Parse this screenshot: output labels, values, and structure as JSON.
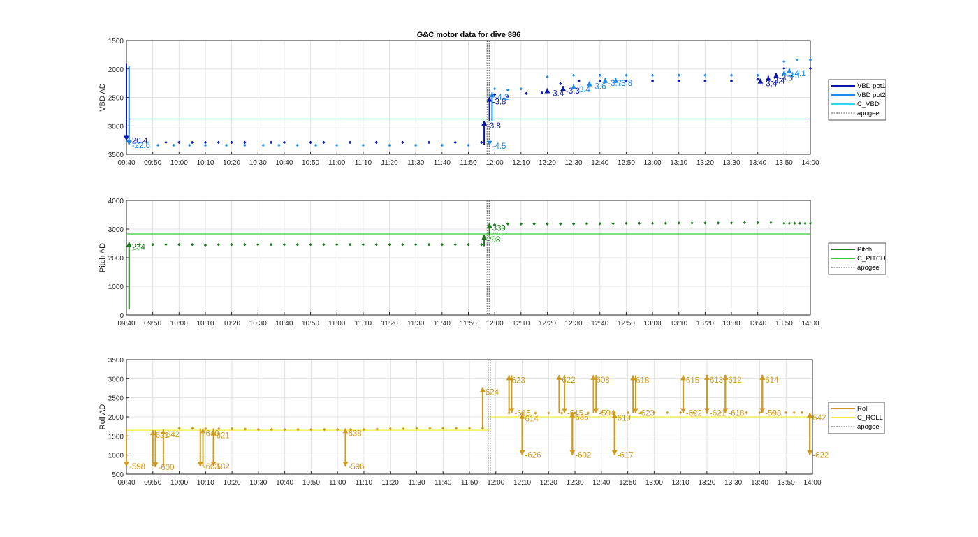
{
  "title": "G&C motor data for dive 886",
  "x_ticks": [
    "09:40",
    "09:50",
    "10:00",
    "10:10",
    "10:20",
    "10:30",
    "10:40",
    "10:50",
    "11:00",
    "11:10",
    "11:20",
    "11:30",
    "11:40",
    "11:50",
    "12:00",
    "12:10",
    "12:20",
    "12:30",
    "12:40",
    "12:50",
    "13:00",
    "13:10",
    "13:20",
    "13:30",
    "13:40",
    "13:50",
    "14:00"
  ],
  "colors": {
    "vbd_pot1": "#0a17a8",
    "vbd_pot2": "#1e88e8",
    "c_vbd": "#2fd6e6",
    "pitch": "#1a7a1a",
    "c_pitch": "#33cc33",
    "roll": "#cc9a1f",
    "c_roll": "#f2ea3a",
    "apogee": "#555555"
  },
  "chart_data": [
    {
      "type": "scatter",
      "ylabel": "VBD AD",
      "ylim": [
        3500,
        1500
      ],
      "y_reversed": true,
      "y_ticks": [
        1500,
        2000,
        2500,
        3000,
        3500
      ],
      "grid": true,
      "legend_position": "right",
      "legend": [
        "VBD pot1",
        "VBD pot2",
        "C_VBD",
        "apogee"
      ],
      "x_range_minutes": [
        0,
        260
      ],
      "apogee_minute": 137.5,
      "reference_line": {
        "name": "C_VBD",
        "y": 2880
      },
      "series": [
        {
          "name": "VBD pot1",
          "x": [
            15,
            20,
            25,
            30,
            35,
            40,
            45,
            55,
            60,
            70,
            75,
            85,
            95,
            105,
            115,
            125,
            135,
            140,
            145,
            152,
            158,
            165,
            172,
            180,
            190,
            200,
            210,
            220,
            230,
            240,
            250,
            260
          ],
          "y": [
            3290,
            3290,
            3290,
            3290,
            3290,
            3290,
            3290,
            3290,
            3290,
            3290,
            3290,
            3290,
            3290,
            3290,
            3290,
            3290,
            3290,
            2450,
            2480,
            2430,
            2420,
            2260,
            2210,
            2210,
            2210,
            2210,
            2210,
            2210,
            2210,
            2180,
            1990,
            1990
          ]
        },
        {
          "name": "VBD pot2",
          "x": [
            12,
            18,
            24,
            30,
            38,
            45,
            52,
            58,
            65,
            72,
            80,
            90,
            100,
            110,
            120,
            130,
            140,
            145,
            150,
            160,
            170,
            180,
            190,
            200,
            210,
            220,
            230,
            240,
            250,
            255,
            260
          ],
          "y": [
            3340,
            3340,
            3340,
            3340,
            3340,
            3340,
            3340,
            3340,
            3340,
            3340,
            3340,
            3340,
            3340,
            3340,
            3340,
            3340,
            2350,
            2370,
            2350,
            2140,
            2110,
            2110,
            2110,
            2110,
            2110,
            2110,
            2110,
            2110,
            1870,
            1840,
            1840
          ]
        }
      ],
      "annotations": [
        {
          "x": 0,
          "y": 3260,
          "label": "-20.4",
          "color": "vbd_pot1",
          "from_y": 1900
        },
        {
          "x": 1,
          "y": 3340,
          "label": "-22.6",
          "color": "vbd_pot2",
          "from_y": 1950
        },
        {
          "x": 136,
          "y": 2910,
          "label": "-3.8",
          "color": "vbd_pot1",
          "from_y": 3340
        },
        {
          "x": 138,
          "y": 2490,
          "label": "-3.8",
          "color": "vbd_pot1",
          "from_y": 2910
        },
        {
          "x": 138,
          "y": 3350,
          "label": "-4.5",
          "color": "vbd_pot2",
          "from_y": 3350
        },
        {
          "x": 139,
          "y": 2410,
          "label": "-4.2",
          "color": "vbd_pot2",
          "from_y": 2910
        },
        {
          "x": 160,
          "y": 2340,
          "label": "-3.4",
          "color": "vbd_pot1",
          "from_y": 2350
        },
        {
          "x": 166,
          "y": 2300,
          "label": "-3.3",
          "color": "vbd_pot1",
          "from_y": 2330
        },
        {
          "x": 170,
          "y": 2270,
          "label": "-3.4",
          "color": "vbd_pot2",
          "from_y": 2300
        },
        {
          "x": 176,
          "y": 2220,
          "label": "-3.6",
          "color": "vbd_pot2",
          "from_y": 2300
        },
        {
          "x": 182,
          "y": 2160,
          "label": "-3.7",
          "color": "vbd_pot2",
          "from_y": 2250
        },
        {
          "x": 186,
          "y": 2160,
          "label": "-3.8",
          "color": "vbd_pot2",
          "from_y": 2250
        },
        {
          "x": 241,
          "y": 2170,
          "label": "-3.4",
          "color": "vbd_pot1",
          "from_y": 2220
        },
        {
          "x": 244,
          "y": 2120,
          "label": "-3.4",
          "color": "vbd_pot1",
          "from_y": 2160
        },
        {
          "x": 247,
          "y": 2070,
          "label": "-3.3",
          "color": "vbd_pot1",
          "from_y": 2120
        },
        {
          "x": 250,
          "y": 2030,
          "label": "-4.1",
          "color": "vbd_pot2",
          "from_y": 2090
        },
        {
          "x": 252,
          "y": 1990,
          "label": "-4.1",
          "color": "vbd_pot2",
          "from_y": 2030
        }
      ]
    },
    {
      "type": "scatter",
      "ylabel": "Pitch AD",
      "ylim": [
        0,
        4000
      ],
      "y_ticks": [
        0,
        1000,
        2000,
        3000,
        4000
      ],
      "grid": true,
      "legend_position": "right",
      "legend": [
        "Pitch",
        "C_PITCH",
        "apogee"
      ],
      "x_range_minutes": [
        0,
        260
      ],
      "apogee_minute": 137.5,
      "reference_line": {
        "name": "C_PITCH",
        "y": 2830
      },
      "series": [
        {
          "name": "Pitch",
          "x": [
            5,
            10,
            15,
            20,
            25,
            30,
            35,
            40,
            45,
            50,
            55,
            60,
            65,
            70,
            75,
            80,
            85,
            90,
            95,
            100,
            105,
            110,
            115,
            120,
            125,
            130,
            135,
            140,
            145,
            150,
            155,
            160,
            165,
            170,
            175,
            180,
            185,
            190,
            195,
            200,
            205,
            210,
            215,
            220,
            225,
            230,
            235,
            240,
            245,
            250,
            252,
            254,
            256,
            258,
            260
          ],
          "y": [
            2460,
            2460,
            2460,
            2460,
            2460,
            2440,
            2460,
            2460,
            2460,
            2460,
            2460,
            2460,
            2460,
            2460,
            2460,
            2460,
            2460,
            2460,
            2460,
            2460,
            2460,
            2460,
            2460,
            2460,
            2460,
            2460,
            2460,
            3150,
            3180,
            3180,
            3180,
            3180,
            3180,
            3180,
            3190,
            3190,
            3190,
            3200,
            3200,
            3200,
            3200,
            3210,
            3210,
            3210,
            3210,
            3210,
            3220,
            3220,
            3220,
            3200,
            3200,
            3200,
            3200,
            3200,
            3200
          ]
        }
      ],
      "annotations": [
        {
          "x": 1,
          "y": 2550,
          "label": "234",
          "color": "pitch",
          "from_y": 200
        },
        {
          "x": 136,
          "y": 2800,
          "label": "298",
          "color": "pitch",
          "from_y": 2400
        },
        {
          "x": 138,
          "y": 3210,
          "label": "339",
          "color": "pitch",
          "from_y": 2800
        }
      ]
    },
    {
      "type": "scatter",
      "ylabel": "Roll AD",
      "ylim": [
        500,
        3500
      ],
      "y_ticks": [
        500,
        1000,
        1500,
        2000,
        2500,
        3000,
        3500
      ],
      "grid": true,
      "legend_position": "right",
      "legend": [
        "Roll",
        "C_ROLL",
        "apogee"
      ],
      "x_range_minutes": [
        0,
        260
      ],
      "apogee_minute": 137.5,
      "reference_line_segments": [
        {
          "name": "C_ROLL",
          "from": 0,
          "to": 137.5,
          "y": 1650
        },
        {
          "name": "C_ROLL",
          "from": 137.5,
          "to": 260,
          "y": 2000
        }
      ],
      "series": [
        {
          "name": "Roll",
          "x": [
            20,
            25,
            30,
            35,
            40,
            45,
            50,
            55,
            60,
            65,
            70,
            75,
            80,
            85,
            90,
            95,
            100,
            105,
            110,
            115,
            120,
            125,
            130,
            135,
            145,
            150,
            155,
            160,
            165,
            170,
            175,
            180,
            185,
            190,
            195,
            200,
            205,
            210,
            215,
            220,
            225,
            230,
            235,
            240,
            245,
            250,
            253,
            256
          ],
          "y": [
            1700,
            1700,
            1690,
            1690,
            1690,
            1680,
            1670,
            1670,
            1670,
            1670,
            1670,
            1670,
            1670,
            1670,
            1670,
            1680,
            1690,
            1690,
            1700,
            1700,
            1700,
            1700,
            1700,
            1700,
            2100,
            2100,
            2100,
            2100,
            2100,
            2100,
            2100,
            2110,
            2110,
            2110,
            2110,
            2110,
            2110,
            2110,
            2110,
            2110,
            2110,
            2110,
            2110,
            2110,
            2110,
            2110,
            2110,
            2110
          ]
        }
      ],
      "annotations": [
        {
          "x": 0,
          "y": 700,
          "label": "-598",
          "color": "roll",
          "from_y": 1700
        },
        {
          "x": 10,
          "y": 1650,
          "label": "621",
          "color": "roll",
          "from_y": 700
        },
        {
          "x": 11,
          "y": 680,
          "label": "-600",
          "color": "roll",
          "from_y": 1650
        },
        {
          "x": 14,
          "y": 1670,
          "label": "642",
          "color": "roll",
          "from_y": 700
        },
        {
          "x": 29,
          "y": 1700,
          "label": "640",
          "color": "roll",
          "from_y": 700
        },
        {
          "x": 28,
          "y": 700,
          "label": "-603",
          "color": "roll",
          "from_y": 1700
        },
        {
          "x": 33,
          "y": 700,
          "label": "582",
          "color": "roll",
          "from_y": 1700
        },
        {
          "x": 33,
          "y": 1640,
          "label": "621",
          "color": "roll",
          "from_y": 700
        },
        {
          "x": 83,
          "y": 1700,
          "label": "638",
          "color": "roll",
          "from_y": 700
        },
        {
          "x": 83,
          "y": 700,
          "label": "-596",
          "color": "roll",
          "from_y": 1700
        },
        {
          "x": 135,
          "y": 2780,
          "label": "624",
          "color": "roll",
          "from_y": 1700
        },
        {
          "x": 145,
          "y": 3090,
          "label": "623",
          "color": "roll",
          "from_y": 2100
        },
        {
          "x": 146,
          "y": 2100,
          "label": "-615",
          "color": "roll",
          "from_y": 3090
        },
        {
          "x": 150,
          "y": 2080,
          "label": "614",
          "color": "roll",
          "from_y": 1000
        },
        {
          "x": 150,
          "y": 1000,
          "label": "-626",
          "color": "roll",
          "from_y": 2100
        },
        {
          "x": 164,
          "y": 3100,
          "label": "622",
          "color": "roll",
          "from_y": 2100
        },
        {
          "x": 166,
          "y": 2100,
          "label": "-615",
          "color": "roll",
          "from_y": 3100
        },
        {
          "x": 169,
          "y": 2120,
          "label": "635",
          "color": "roll",
          "from_y": 1000
        },
        {
          "x": 169,
          "y": 1000,
          "label": "-602",
          "color": "roll",
          "from_y": 2100
        },
        {
          "x": 177,
          "y": 3100,
          "label": "608",
          "color": "roll",
          "from_y": 2100
        },
        {
          "x": 178,
          "y": 2100,
          "label": "-594",
          "color": "roll",
          "from_y": 3100
        },
        {
          "x": 185,
          "y": 2100,
          "label": "619",
          "color": "roll",
          "from_y": 1000
        },
        {
          "x": 185,
          "y": 1000,
          "label": "-617",
          "color": "roll",
          "from_y": 2100
        },
        {
          "x": 192,
          "y": 3090,
          "label": "618",
          "color": "roll",
          "from_y": 2100
        },
        {
          "x": 193,
          "y": 2100,
          "label": "-623",
          "color": "roll",
          "from_y": 3090
        },
        {
          "x": 211,
          "y": 3090,
          "label": "615",
          "color": "roll",
          "from_y": 2100
        },
        {
          "x": 211,
          "y": 2100,
          "label": "-622",
          "color": "roll",
          "from_y": 3090
        },
        {
          "x": 220,
          "y": 3100,
          "label": "613",
          "color": "roll",
          "from_y": 2100
        },
        {
          "x": 220,
          "y": 2100,
          "label": "-621",
          "color": "roll",
          "from_y": 3100
        },
        {
          "x": 227,
          "y": 3100,
          "label": "612",
          "color": "roll",
          "from_y": 2100
        },
        {
          "x": 227,
          "y": 2100,
          "label": "-618",
          "color": "roll",
          "from_y": 3100
        },
        {
          "x": 241,
          "y": 3100,
          "label": "614",
          "color": "roll",
          "from_y": 2100
        },
        {
          "x": 241,
          "y": 2100,
          "label": "-598",
          "color": "roll",
          "from_y": 3100
        },
        {
          "x": 259,
          "y": 2110,
          "label": "642",
          "color": "roll",
          "from_y": 1000
        },
        {
          "x": 259,
          "y": 1000,
          "label": "-622",
          "color": "roll",
          "from_y": 2100
        }
      ]
    }
  ]
}
